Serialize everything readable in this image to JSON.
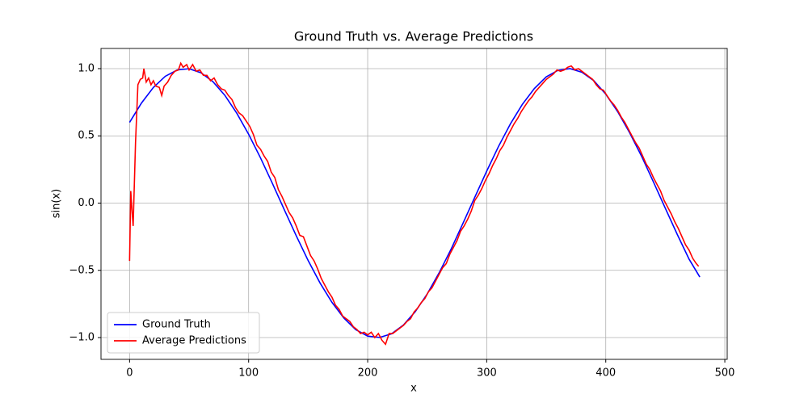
{
  "chart_data": {
    "type": "line",
    "title": "Ground Truth vs. Average Predictions",
    "x_label": "x",
    "y_label": "sin(x)",
    "xlim": [
      -24,
      502
    ],
    "ylim": [
      -1.162,
      1.15
    ],
    "xticks": [
      0,
      100,
      200,
      300,
      400,
      500
    ],
    "yticks": [
      {
        "value": -1.0,
        "label": "−1.0"
      },
      {
        "value": -0.5,
        "label": "−0.5"
      },
      {
        "value": 0.0,
        "label": "0.0"
      },
      {
        "value": 0.5,
        "label": "0.5"
      },
      {
        "value": 1.0,
        "label": "1.0"
      }
    ],
    "grid": true,
    "legend": "lower left",
    "series": [
      {
        "name": "Ground Truth",
        "color": "#0000ff",
        "x": [
          0,
          10,
          20,
          30,
          40,
          50,
          60,
          70,
          80,
          90,
          100,
          110,
          120,
          130,
          140,
          150,
          160,
          170,
          180,
          190,
          200,
          210,
          220,
          230,
          240,
          250,
          260,
          270,
          280,
          290,
          300,
          310,
          320,
          330,
          340,
          350,
          360,
          370,
          380,
          390,
          400,
          410,
          420,
          430,
          440,
          450,
          460,
          470,
          479
        ],
        "values": [
          0.6,
          0.744,
          0.86,
          0.943,
          0.99,
          0.999,
          0.969,
          0.903,
          0.802,
          0.669,
          0.512,
          0.336,
          0.146,
          -0.05,
          -0.243,
          -0.427,
          -0.594,
          -0.738,
          -0.855,
          -0.941,
          -0.989,
          -0.999,
          -0.972,
          -0.907,
          -0.807,
          -0.676,
          -0.519,
          -0.344,
          -0.151,
          0.044,
          0.238,
          0.423,
          0.591,
          0.735,
          0.852,
          0.939,
          0.988,
          1.0,
          0.973,
          0.91,
          0.81,
          0.68,
          0.524,
          0.35,
          0.158,
          -0.038,
          -0.232,
          -0.417,
          -0.55
        ]
      },
      {
        "name": "Average Predictions",
        "color": "#ff0000",
        "x": [
          0,
          1,
          2,
          3,
          5,
          7,
          9,
          11,
          12,
          14,
          16,
          18,
          20,
          22,
          25,
          27,
          29,
          32,
          35,
          38,
          41,
          43,
          45,
          48,
          50,
          53,
          56,
          59,
          62,
          65,
          68,
          71,
          74,
          77,
          80,
          83,
          86,
          89,
          92,
          95,
          98,
          101,
          104,
          107,
          110,
          113,
          116,
          119,
          122,
          125,
          128,
          131,
          134,
          137,
          140,
          143,
          146,
          149,
          152,
          155,
          158,
          161,
          164,
          167,
          170,
          173,
          176,
          179,
          182,
          185,
          188,
          191,
          194,
          197,
          200,
          203,
          206,
          209,
          212,
          215,
          218,
          221,
          224,
          227,
          230,
          233,
          236,
          239,
          242,
          245,
          248,
          251,
          254,
          257,
          260,
          263,
          266,
          269,
          272,
          275,
          278,
          281,
          284,
          287,
          290,
          293,
          296,
          299,
          302,
          305,
          308,
          311,
          314,
          317,
          320,
          323,
          326,
          329,
          332,
          335,
          338,
          341,
          344,
          347,
          350,
          353,
          356,
          359,
          362,
          365,
          368,
          371,
          374,
          377,
          380,
          383,
          386,
          389,
          392,
          395,
          398,
          401,
          404,
          407,
          410,
          413,
          416,
          419,
          422,
          425,
          428,
          431,
          434,
          437,
          440,
          443,
          446,
          449,
          452,
          455,
          458,
          461,
          464,
          467,
          470,
          473,
          476,
          478
        ],
        "values": [
          -0.43,
          0.09,
          -0.05,
          -0.17,
          0.45,
          0.88,
          0.92,
          0.93,
          1.0,
          0.9,
          0.93,
          0.88,
          0.91,
          0.87,
          0.86,
          0.8,
          0.87,
          0.9,
          0.95,
          0.98,
          0.99,
          1.04,
          1.01,
          1.03,
          0.99,
          1.03,
          0.98,
          0.99,
          0.95,
          0.95,
          0.91,
          0.93,
          0.88,
          0.85,
          0.84,
          0.8,
          0.77,
          0.71,
          0.67,
          0.65,
          0.61,
          0.57,
          0.51,
          0.43,
          0.4,
          0.35,
          0.31,
          0.23,
          0.19,
          0.1,
          0.05,
          -0.01,
          -0.07,
          -0.11,
          -0.17,
          -0.24,
          -0.25,
          -0.32,
          -0.39,
          -0.43,
          -0.49,
          -0.56,
          -0.61,
          -0.66,
          -0.7,
          -0.76,
          -0.79,
          -0.84,
          -0.86,
          -0.88,
          -0.92,
          -0.94,
          -0.97,
          -0.96,
          -0.98,
          -0.96,
          -1.0,
          -0.97,
          -1.02,
          -1.05,
          -0.97,
          -0.97,
          -0.95,
          -0.93,
          -0.91,
          -0.88,
          -0.86,
          -0.81,
          -0.78,
          -0.74,
          -0.71,
          -0.66,
          -0.63,
          -0.58,
          -0.53,
          -0.48,
          -0.45,
          -0.38,
          -0.33,
          -0.28,
          -0.21,
          -0.17,
          -0.12,
          -0.06,
          0.02,
          0.06,
          0.11,
          0.17,
          0.22,
          0.28,
          0.33,
          0.39,
          0.43,
          0.49,
          0.54,
          0.59,
          0.63,
          0.68,
          0.72,
          0.76,
          0.79,
          0.83,
          0.86,
          0.89,
          0.92,
          0.94,
          0.96,
          0.99,
          0.98,
          0.99,
          1.01,
          1.02,
          0.99,
          1.0,
          0.98,
          0.96,
          0.94,
          0.92,
          0.88,
          0.85,
          0.84,
          0.8,
          0.76,
          0.73,
          0.69,
          0.64,
          0.6,
          0.55,
          0.5,
          0.45,
          0.41,
          0.35,
          0.29,
          0.25,
          0.19,
          0.14,
          0.09,
          0.02,
          -0.03,
          -0.08,
          -0.14,
          -0.19,
          -0.25,
          -0.31,
          -0.35,
          -0.41,
          -0.45,
          -0.47
        ]
      }
    ]
  }
}
